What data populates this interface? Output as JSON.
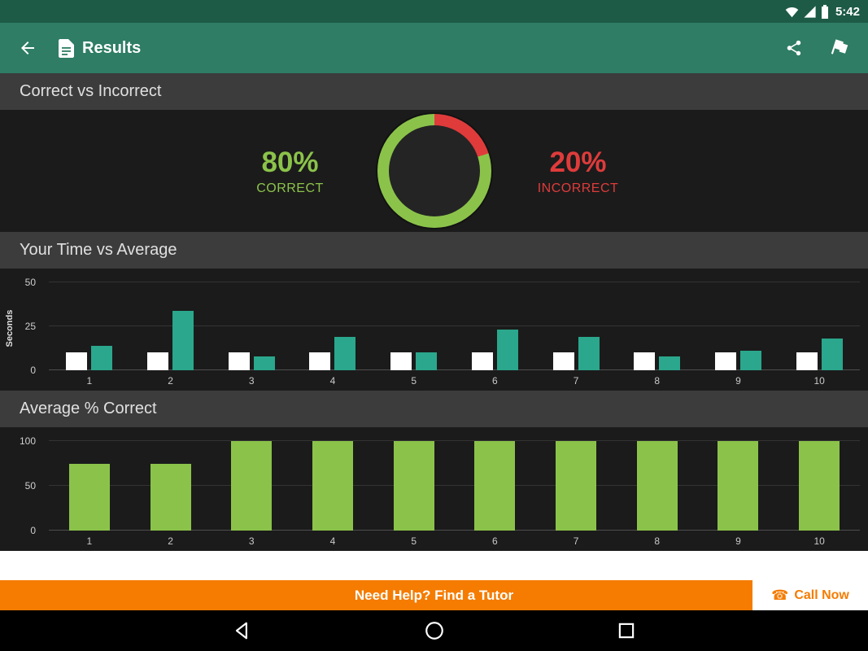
{
  "status_bar": {
    "time": "5:42"
  },
  "app_bar": {
    "title": "Results"
  },
  "section_headers": {
    "correct_vs_incorrect": "Correct vs Incorrect",
    "time_vs_average": "Your Time vs Average",
    "average_correct": "Average % Correct"
  },
  "donut": {
    "correct_value": 80,
    "incorrect_value": 20,
    "correct_pct_label": "80%",
    "correct_label": "CORRECT",
    "incorrect_pct_label": "20%",
    "incorrect_label": "INCORRECT",
    "correct_color": "#8bc34a",
    "incorrect_color": "#df3b3b"
  },
  "chart_data": [
    {
      "type": "bar",
      "title": "Your Time vs Average",
      "xlabel": "",
      "ylabel": "Seconds",
      "categories": [
        "1",
        "2",
        "3",
        "4",
        "5",
        "6",
        "7",
        "8",
        "9",
        "10"
      ],
      "series": [
        {
          "name": "Your Time",
          "color": "#ffffff",
          "values": [
            10,
            10,
            10,
            10,
            10,
            10,
            10,
            10,
            10,
            10
          ]
        },
        {
          "name": "Average",
          "color": "#2aa78c",
          "values": [
            14,
            34,
            8,
            19,
            10,
            23,
            19,
            8,
            11,
            18
          ]
        }
      ],
      "yticks": [
        0,
        25,
        50
      ],
      "ylim": [
        0,
        50
      ],
      "grid": true,
      "legend": "none"
    },
    {
      "type": "bar",
      "title": "Average % Correct",
      "xlabel": "",
      "ylabel": "",
      "categories": [
        "1",
        "2",
        "3",
        "4",
        "5",
        "6",
        "7",
        "8",
        "9",
        "10"
      ],
      "series": [
        {
          "name": "Average % Correct",
          "color": "#8bc34a",
          "values": [
            75,
            75,
            100,
            100,
            100,
            100,
            100,
            100,
            100,
            100
          ]
        }
      ],
      "yticks": [
        0,
        50,
        100
      ],
      "ylim": [
        0,
        100
      ],
      "grid": true,
      "legend": "none"
    }
  ],
  "banner": {
    "help_text": "Need Help? Find a Tutor",
    "call_now_label": "Call Now",
    "background_color": "#f57c00",
    "call_now_color": "#f57c00"
  },
  "colors": {
    "app_bar": "#2e7d64",
    "status_bar": "#1d5b47",
    "section_header_bg": "#3c3c3c",
    "content_bg": "#1b1b1b"
  }
}
